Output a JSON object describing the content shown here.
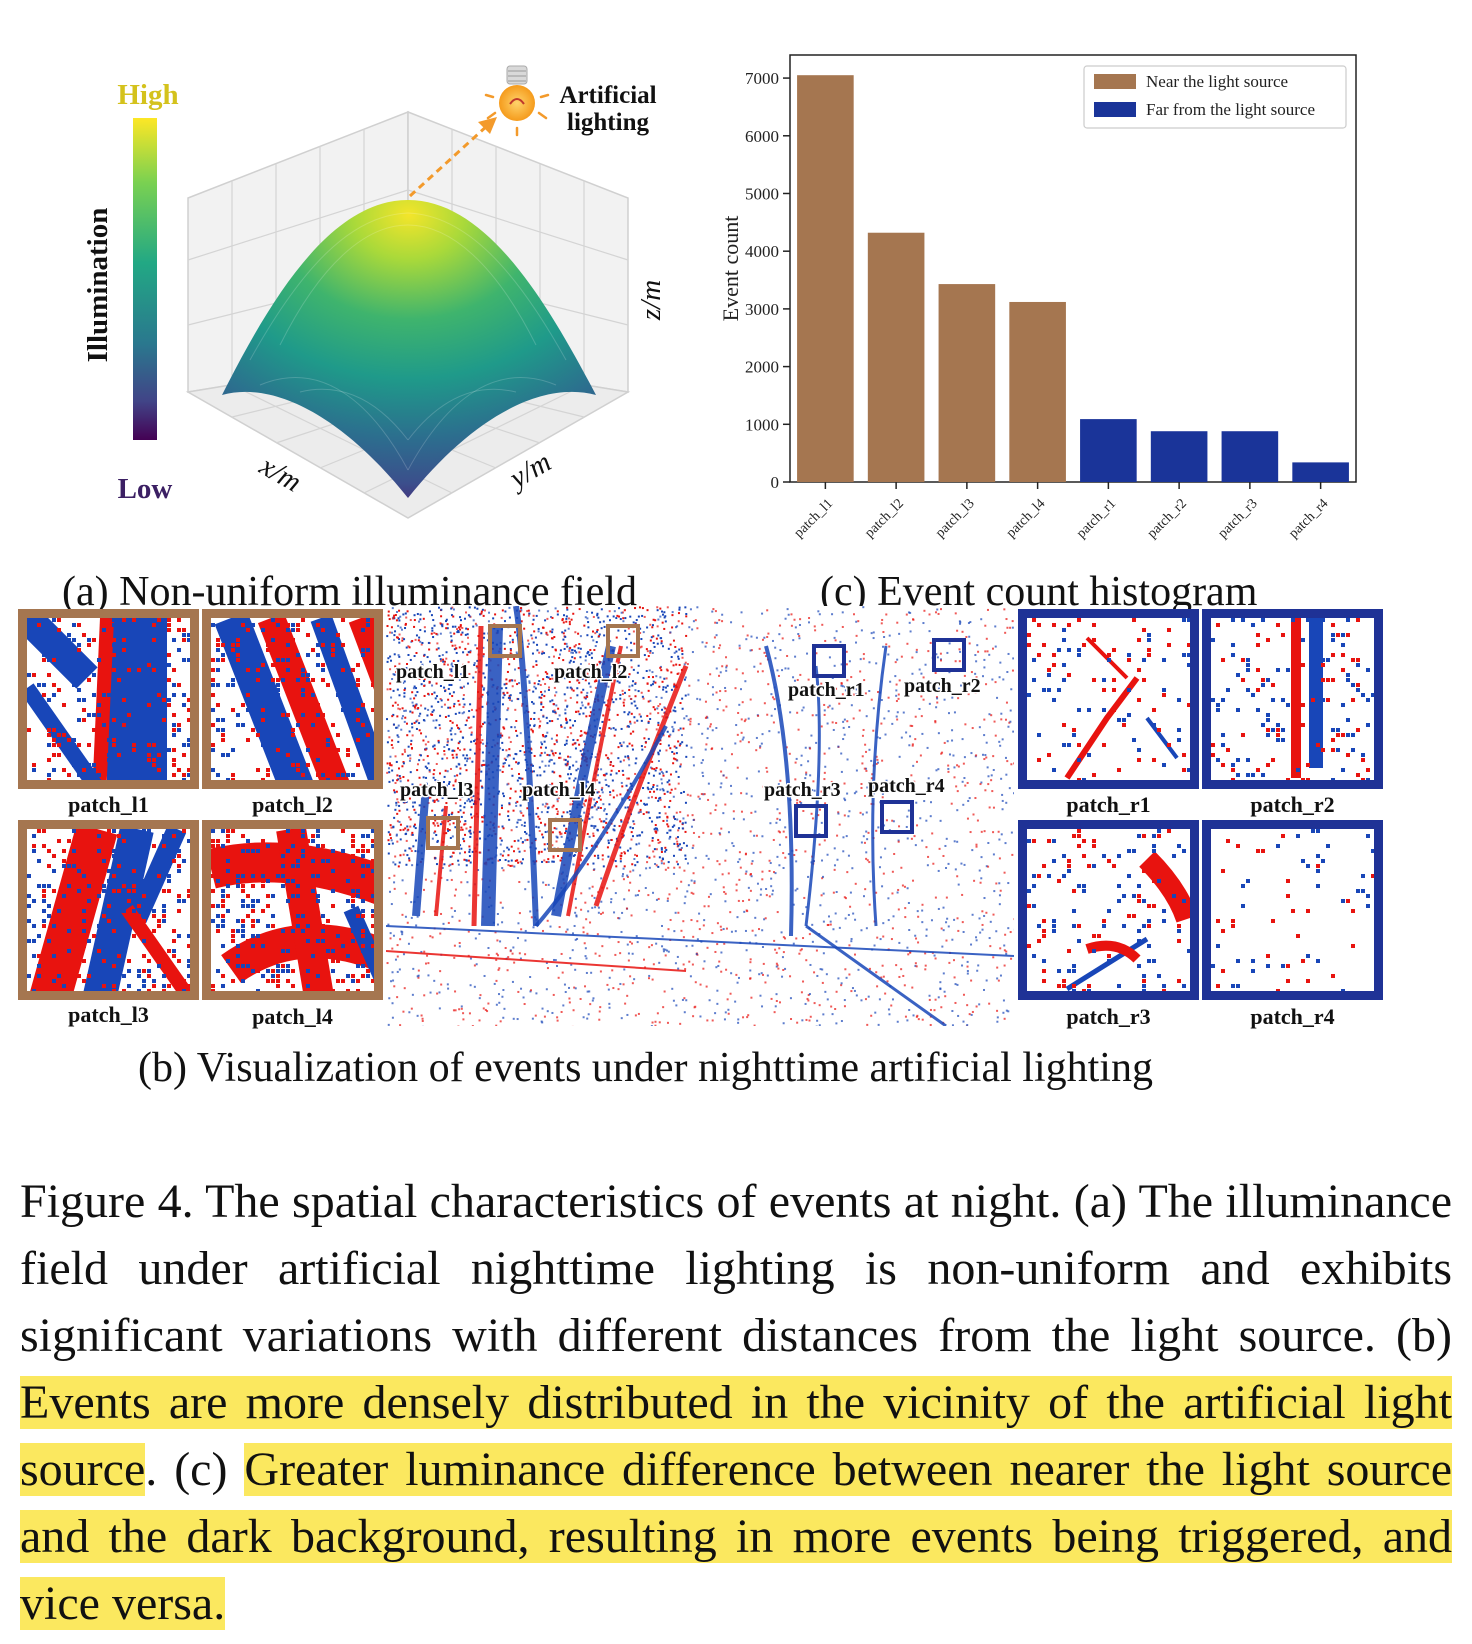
{
  "panel_a": {
    "caption": "(a) Non-uniform illuminance field",
    "colorbar_high": "High",
    "colorbar_low": "Low",
    "colorbar_title": "Illumination",
    "annotation_line1": "Artificial",
    "annotation_line2": "lighting",
    "axis_x": "x/m",
    "axis_y": "y/m",
    "axis_z": "z/m"
  },
  "panel_b": {
    "caption": "(b) Visualization of events under nighttime artificial lighting",
    "patch_labels": {
      "l1": "patch_l1",
      "l2": "patch_l2",
      "l3": "patch_l3",
      "l4": "patch_l4",
      "r1": "patch_r1",
      "r2": "patch_r2",
      "r3": "patch_r3",
      "r4": "patch_r4"
    },
    "colors": {
      "near": "#a57650",
      "far": "#1f3296",
      "pos": "#e8130f",
      "neg": "#1846b8"
    }
  },
  "panel_c": {
    "caption": "(c) Event count histogram"
  },
  "chart_data": {
    "type": "bar",
    "categories": [
      "patch_l1",
      "patch_l2",
      "patch_l3",
      "patch_l4",
      "patch_r1",
      "patch_r2",
      "patch_r3",
      "patch_r4"
    ],
    "series": [
      {
        "name": "Near the light source",
        "color": "#a57650",
        "values": [
          7050,
          4320,
          3430,
          3120,
          null,
          null,
          null,
          null
        ]
      },
      {
        "name": "Far from the light source",
        "color": "#1a3499",
        "values": [
          null,
          null,
          null,
          null,
          1090,
          880,
          880,
          340
        ]
      }
    ],
    "title": "",
    "xlabel": "",
    "ylabel": "Event count",
    "ylim": [
      0,
      7400
    ],
    "yticks": [
      0,
      1000,
      2000,
      3000,
      4000,
      5000,
      6000,
      7000
    ],
    "grid": false,
    "legend": "top-right"
  },
  "caption": {
    "part1": "Figure 4.  The spatial characteristics of events at night.  (a) The illuminance field under artificial nighttime lighting is non-uniform and exhibits significant variations with different distances from the light source. (b) ",
    "highlight1": "Events are more densely distributed in the vicinity of the artificial light source",
    "part2": ".  (c) ",
    "highlight2": "Greater luminance difference between nearer the light source and the dark background, resulting in more events being triggered, and vice versa."
  }
}
